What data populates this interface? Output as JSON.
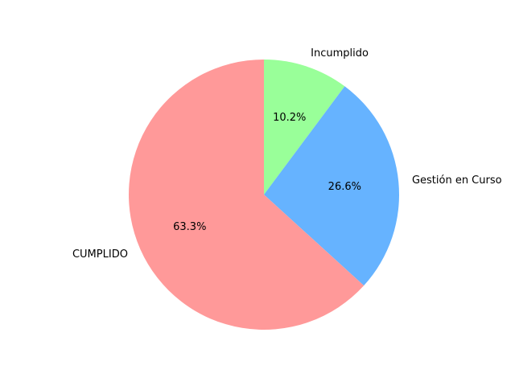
{
  "chart_data": {
    "type": "pie",
    "title": "",
    "start_angle_deg": 90,
    "direction": "clockwise",
    "slices": [
      {
        "label": "Incumplido",
        "value": 10.2,
        "pct_label": "10.2%",
        "color": "#99ff99"
      },
      {
        "label": "Gestión en Curso",
        "value": 26.6,
        "pct_label": "26.6%",
        "color": "#66b3ff"
      },
      {
        "label": "CUMPLIDO",
        "value": 63.3,
        "pct_label": "63.3%",
        "color": "#ff9999"
      }
    ]
  }
}
